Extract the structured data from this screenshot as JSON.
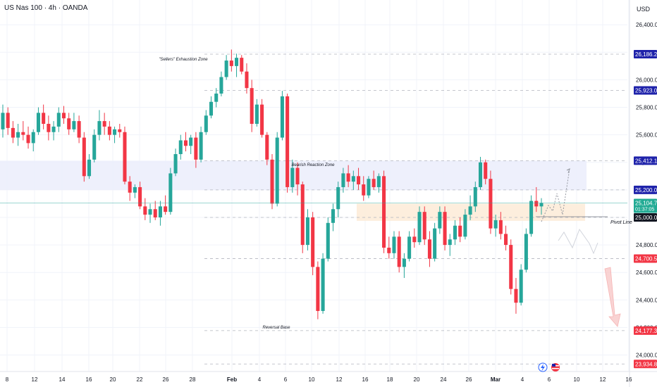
{
  "header": {
    "title": "US Nas 100 · 4h · OANDA"
  },
  "currency": "USD",
  "colors": {
    "up": "#26a69a",
    "down": "#f23645",
    "grid": "#f0f3fa",
    "axis_text": "#131722",
    "blue_label": "#1e22aa",
    "red_label": "#f23645",
    "green_label": "#22ab94",
    "zone_blue": "#ebedfb",
    "zone_orange": "#fdebd7",
    "price_line": "#26a69a"
  },
  "chart_data": {
    "type": "candlestick",
    "symbol": "US Nas 100",
    "timeframe": "4h",
    "source": "OANDA",
    "y_axis": {
      "ticks": [
        24000,
        24200,
        24400,
        24600,
        24800,
        25000,
        25200,
        25400,
        25600,
        25800,
        26000,
        26200,
        26400
      ],
      "tick_labels": [
        "24,000.0",
        "24,200.0",
        "24,400.0",
        "24,600.0",
        "24,800.0",
        "25,000.0",
        "25,200.0",
        "25,400.0",
        "25,600.0",
        "25,800.0",
        "26,000.0",
        "26,200.0",
        "26,400.0"
      ],
      "range": [
        23880,
        26580
      ]
    },
    "x_axis": {
      "labels": [
        "8",
        "12",
        "14",
        "16",
        "20",
        "22",
        "26",
        "28",
        "Feb",
        "4",
        "6",
        "10",
        "12",
        "16",
        "18",
        "20",
        "24",
        "26",
        "Mar",
        "4",
        "6",
        "10",
        "12",
        "16"
      ]
    },
    "price_levels": [
      {
        "label": "26,186.2",
        "value": 26186.2,
        "style": "blue"
      },
      {
        "label": "25,923.0",
        "value": 25923.0,
        "style": "blue"
      },
      {
        "label": "25,412.1",
        "value": 25412.1,
        "style": "blue"
      },
      {
        "label": "25,200.0",
        "value": 25200.0,
        "style": "blue"
      },
      {
        "label": "25,000.0",
        "value": 25000.0,
        "style": "black"
      },
      {
        "label": "24,700.5",
        "value": 24700.5,
        "style": "red"
      },
      {
        "label": "24,177.3",
        "value": 24177.3,
        "style": "red"
      },
      {
        "label": "23,934.8",
        "value": 23934.8,
        "style": "red"
      }
    ],
    "current_price": {
      "value": 25104.7,
      "label": "25,104.7",
      "countdown": "01:37:05"
    },
    "zones": [
      {
        "name": "Bearish Reaction Zone",
        "low": 25200,
        "high": 25412
      },
      {
        "name": "demand-zone",
        "low": 24975,
        "high": 25100
      }
    ],
    "annotations": [
      "\"Sellers\" Exhaustion Zone",
      "Bearish Reaction Zone",
      "Reversal Base",
      "Pivot Line"
    ],
    "pivot_line": 25000,
    "candles": [
      {
        "o": 25640,
        "h": 25820,
        "l": 25580,
        "c": 25760
      },
      {
        "o": 25760,
        "h": 25800,
        "l": 25600,
        "c": 25650
      },
      {
        "o": 25650,
        "h": 25700,
        "l": 25540,
        "c": 25580
      },
      {
        "o": 25580,
        "h": 25680,
        "l": 25520,
        "c": 25620
      },
      {
        "o": 25620,
        "h": 25700,
        "l": 25560,
        "c": 25600
      },
      {
        "o": 25600,
        "h": 25660,
        "l": 25500,
        "c": 25540
      },
      {
        "o": 25540,
        "h": 25640,
        "l": 25480,
        "c": 25620
      },
      {
        "o": 25620,
        "h": 25800,
        "l": 25600,
        "c": 25760
      },
      {
        "o": 25760,
        "h": 25820,
        "l": 25640,
        "c": 25680
      },
      {
        "o": 25680,
        "h": 25740,
        "l": 25560,
        "c": 25620
      },
      {
        "o": 25620,
        "h": 25700,
        "l": 25560,
        "c": 25660
      },
      {
        "o": 25660,
        "h": 25800,
        "l": 25620,
        "c": 25760
      },
      {
        "o": 25760,
        "h": 25810,
        "l": 25680,
        "c": 25720
      },
      {
        "o": 25720,
        "h": 25760,
        "l": 25600,
        "c": 25640
      },
      {
        "o": 25640,
        "h": 25760,
        "l": 25620,
        "c": 25700
      },
      {
        "o": 25700,
        "h": 25740,
        "l": 25540,
        "c": 25580
      },
      {
        "o": 25580,
        "h": 25620,
        "l": 25260,
        "c": 25300
      },
      {
        "o": 25300,
        "h": 25460,
        "l": 25280,
        "c": 25420
      },
      {
        "o": 25420,
        "h": 25640,
        "l": 25400,
        "c": 25600
      },
      {
        "o": 25600,
        "h": 25780,
        "l": 25560,
        "c": 25700
      },
      {
        "o": 25700,
        "h": 25760,
        "l": 25600,
        "c": 25660
      },
      {
        "o": 25660,
        "h": 25700,
        "l": 25560,
        "c": 25600
      },
      {
        "o": 25600,
        "h": 25660,
        "l": 25540,
        "c": 25640
      },
      {
        "o": 25640,
        "h": 25680,
        "l": 25580,
        "c": 25620
      },
      {
        "o": 25620,
        "h": 25660,
        "l": 25240,
        "c": 25260
      },
      {
        "o": 25260,
        "h": 25300,
        "l": 25120,
        "c": 25180
      },
      {
        "o": 25180,
        "h": 25240,
        "l": 25140,
        "c": 25220
      },
      {
        "o": 25220,
        "h": 25260,
        "l": 25060,
        "c": 25080
      },
      {
        "o": 25080,
        "h": 25140,
        "l": 24980,
        "c": 25020
      },
      {
        "o": 25020,
        "h": 25100,
        "l": 24960,
        "c": 25060
      },
      {
        "o": 25060,
        "h": 25120,
        "l": 24980,
        "c": 25000
      },
      {
        "o": 25000,
        "h": 25120,
        "l": 24940,
        "c": 25080
      },
      {
        "o": 25080,
        "h": 25160,
        "l": 25020,
        "c": 25040
      },
      {
        "o": 25040,
        "h": 25360,
        "l": 25020,
        "c": 25320
      },
      {
        "o": 25320,
        "h": 25500,
        "l": 25300,
        "c": 25460
      },
      {
        "o": 25460,
        "h": 25600,
        "l": 25420,
        "c": 25560
      },
      {
        "o": 25560,
        "h": 25620,
        "l": 25480,
        "c": 25520
      },
      {
        "o": 25520,
        "h": 25600,
        "l": 25460,
        "c": 25580
      },
      {
        "o": 25580,
        "h": 25620,
        "l": 25360,
        "c": 25420
      },
      {
        "o": 25420,
        "h": 25660,
        "l": 25400,
        "c": 25620
      },
      {
        "o": 25620,
        "h": 25780,
        "l": 25600,
        "c": 25740
      },
      {
        "o": 25740,
        "h": 25880,
        "l": 25720,
        "c": 25840
      },
      {
        "o": 25840,
        "h": 25940,
        "l": 25800,
        "c": 25900
      },
      {
        "o": 25900,
        "h": 26060,
        "l": 25880,
        "c": 26020
      },
      {
        "o": 26020,
        "h": 26180,
        "l": 26000,
        "c": 26140
      },
      {
        "o": 26140,
        "h": 26220,
        "l": 26060,
        "c": 26100
      },
      {
        "o": 26100,
        "h": 26190,
        "l": 26020,
        "c": 26160
      },
      {
        "o": 26160,
        "h": 26180,
        "l": 26040,
        "c": 26060
      },
      {
        "o": 26060,
        "h": 26120,
        "l": 25900,
        "c": 25940
      },
      {
        "o": 25940,
        "h": 26000,
        "l": 25620,
        "c": 25680
      },
      {
        "o": 25680,
        "h": 25860,
        "l": 25660,
        "c": 25820
      },
      {
        "o": 25820,
        "h": 25860,
        "l": 25580,
        "c": 25600
      },
      {
        "o": 25600,
        "h": 25620,
        "l": 25380,
        "c": 25420
      },
      {
        "o": 25420,
        "h": 25460,
        "l": 25060,
        "c": 25100
      },
      {
        "o": 25100,
        "h": 25620,
        "l": 25080,
        "c": 25580
      },
      {
        "o": 25580,
        "h": 25920,
        "l": 25560,
        "c": 25880
      },
      {
        "o": 25880,
        "h": 25900,
        "l": 25180,
        "c": 25220
      },
      {
        "o": 25220,
        "h": 25420,
        "l": 25180,
        "c": 25360
      },
      {
        "o": 25360,
        "h": 25400,
        "l": 25160,
        "c": 25240
      },
      {
        "o": 25240,
        "h": 25260,
        "l": 24740,
        "c": 24800
      },
      {
        "o": 24800,
        "h": 25060,
        "l": 24760,
        "c": 25000
      },
      {
        "o": 25000,
        "h": 25040,
        "l": 24580,
        "c": 24640
      },
      {
        "o": 24640,
        "h": 24680,
        "l": 24260,
        "c": 24320
      },
      {
        "o": 24320,
        "h": 24740,
        "l": 24300,
        "c": 24700
      },
      {
        "o": 24700,
        "h": 25000,
        "l": 24680,
        "c": 24960
      },
      {
        "o": 24960,
        "h": 25100,
        "l": 24900,
        "c": 25060
      },
      {
        "o": 25060,
        "h": 25260,
        "l": 25000,
        "c": 25220
      },
      {
        "o": 25220,
        "h": 25360,
        "l": 25180,
        "c": 25320
      },
      {
        "o": 25320,
        "h": 25380,
        "l": 25220,
        "c": 25260
      },
      {
        "o": 25260,
        "h": 25340,
        "l": 25200,
        "c": 25300
      },
      {
        "o": 25300,
        "h": 25360,
        "l": 25200,
        "c": 25240
      },
      {
        "o": 25240,
        "h": 25300,
        "l": 25120,
        "c": 25160
      },
      {
        "o": 25160,
        "h": 25300,
        "l": 25140,
        "c": 25280
      },
      {
        "o": 25280,
        "h": 25340,
        "l": 25200,
        "c": 25220
      },
      {
        "o": 25220,
        "h": 25320,
        "l": 25180,
        "c": 25300
      },
      {
        "o": 25300,
        "h": 25340,
        "l": 24740,
        "c": 24780
      },
      {
        "o": 24780,
        "h": 24860,
        "l": 24700,
        "c": 24740
      },
      {
        "o": 24740,
        "h": 24900,
        "l": 24700,
        "c": 24860
      },
      {
        "o": 24860,
        "h": 24900,
        "l": 24600,
        "c": 24640
      },
      {
        "o": 24640,
        "h": 24740,
        "l": 24560,
        "c": 24700
      },
      {
        "o": 24700,
        "h": 24900,
        "l": 24680,
        "c": 24860
      },
      {
        "o": 24860,
        "h": 24920,
        "l": 24780,
        "c": 24820
      },
      {
        "o": 24820,
        "h": 25080,
        "l": 24800,
        "c": 25040
      },
      {
        "o": 25040,
        "h": 25080,
        "l": 24800,
        "c": 24840
      },
      {
        "o": 24840,
        "h": 24900,
        "l": 24640,
        "c": 24700
      },
      {
        "o": 24700,
        "h": 24960,
        "l": 24680,
        "c": 24920
      },
      {
        "o": 24920,
        "h": 25080,
        "l": 24880,
        "c": 25040
      },
      {
        "o": 25040,
        "h": 25080,
        "l": 24760,
        "c": 24800
      },
      {
        "o": 24800,
        "h": 24880,
        "l": 24720,
        "c": 24840
      },
      {
        "o": 24840,
        "h": 24980,
        "l": 24800,
        "c": 24940
      },
      {
        "o": 24940,
        "h": 25000,
        "l": 24820,
        "c": 24860
      },
      {
        "o": 24860,
        "h": 25060,
        "l": 24840,
        "c": 25020
      },
      {
        "o": 25020,
        "h": 25160,
        "l": 24980,
        "c": 25080
      },
      {
        "o": 25080,
        "h": 25260,
        "l": 25040,
        "c": 25220
      },
      {
        "o": 25220,
        "h": 25440,
        "l": 25200,
        "c": 25400
      },
      {
        "o": 25400,
        "h": 25420,
        "l": 25240,
        "c": 25280
      },
      {
        "o": 25280,
        "h": 25340,
        "l": 24880,
        "c": 24920
      },
      {
        "o": 24920,
        "h": 25020,
        "l": 24860,
        "c": 24980
      },
      {
        "o": 24980,
        "h": 25040,
        "l": 24840,
        "c": 24880
      },
      {
        "o": 24880,
        "h": 24940,
        "l": 24760,
        "c": 24800
      },
      {
        "o": 24800,
        "h": 24840,
        "l": 24440,
        "c": 24480
      },
      {
        "o": 24480,
        "h": 24560,
        "l": 24300,
        "c": 24380
      },
      {
        "o": 24380,
        "h": 24660,
        "l": 24360,
        "c": 24620
      },
      {
        "o": 24620,
        "h": 24920,
        "l": 24600,
        "c": 24880
      },
      {
        "o": 24880,
        "h": 25160,
        "l": 24860,
        "c": 25120
      },
      {
        "o": 25120,
        "h": 25220,
        "l": 25040,
        "c": 25080
      },
      {
        "o": 25080,
        "h": 25140,
        "l": 25020,
        "c": 25104.7
      }
    ],
    "projections": [
      "bullish-path",
      "bearish-path",
      "bearish-arrow"
    ]
  }
}
